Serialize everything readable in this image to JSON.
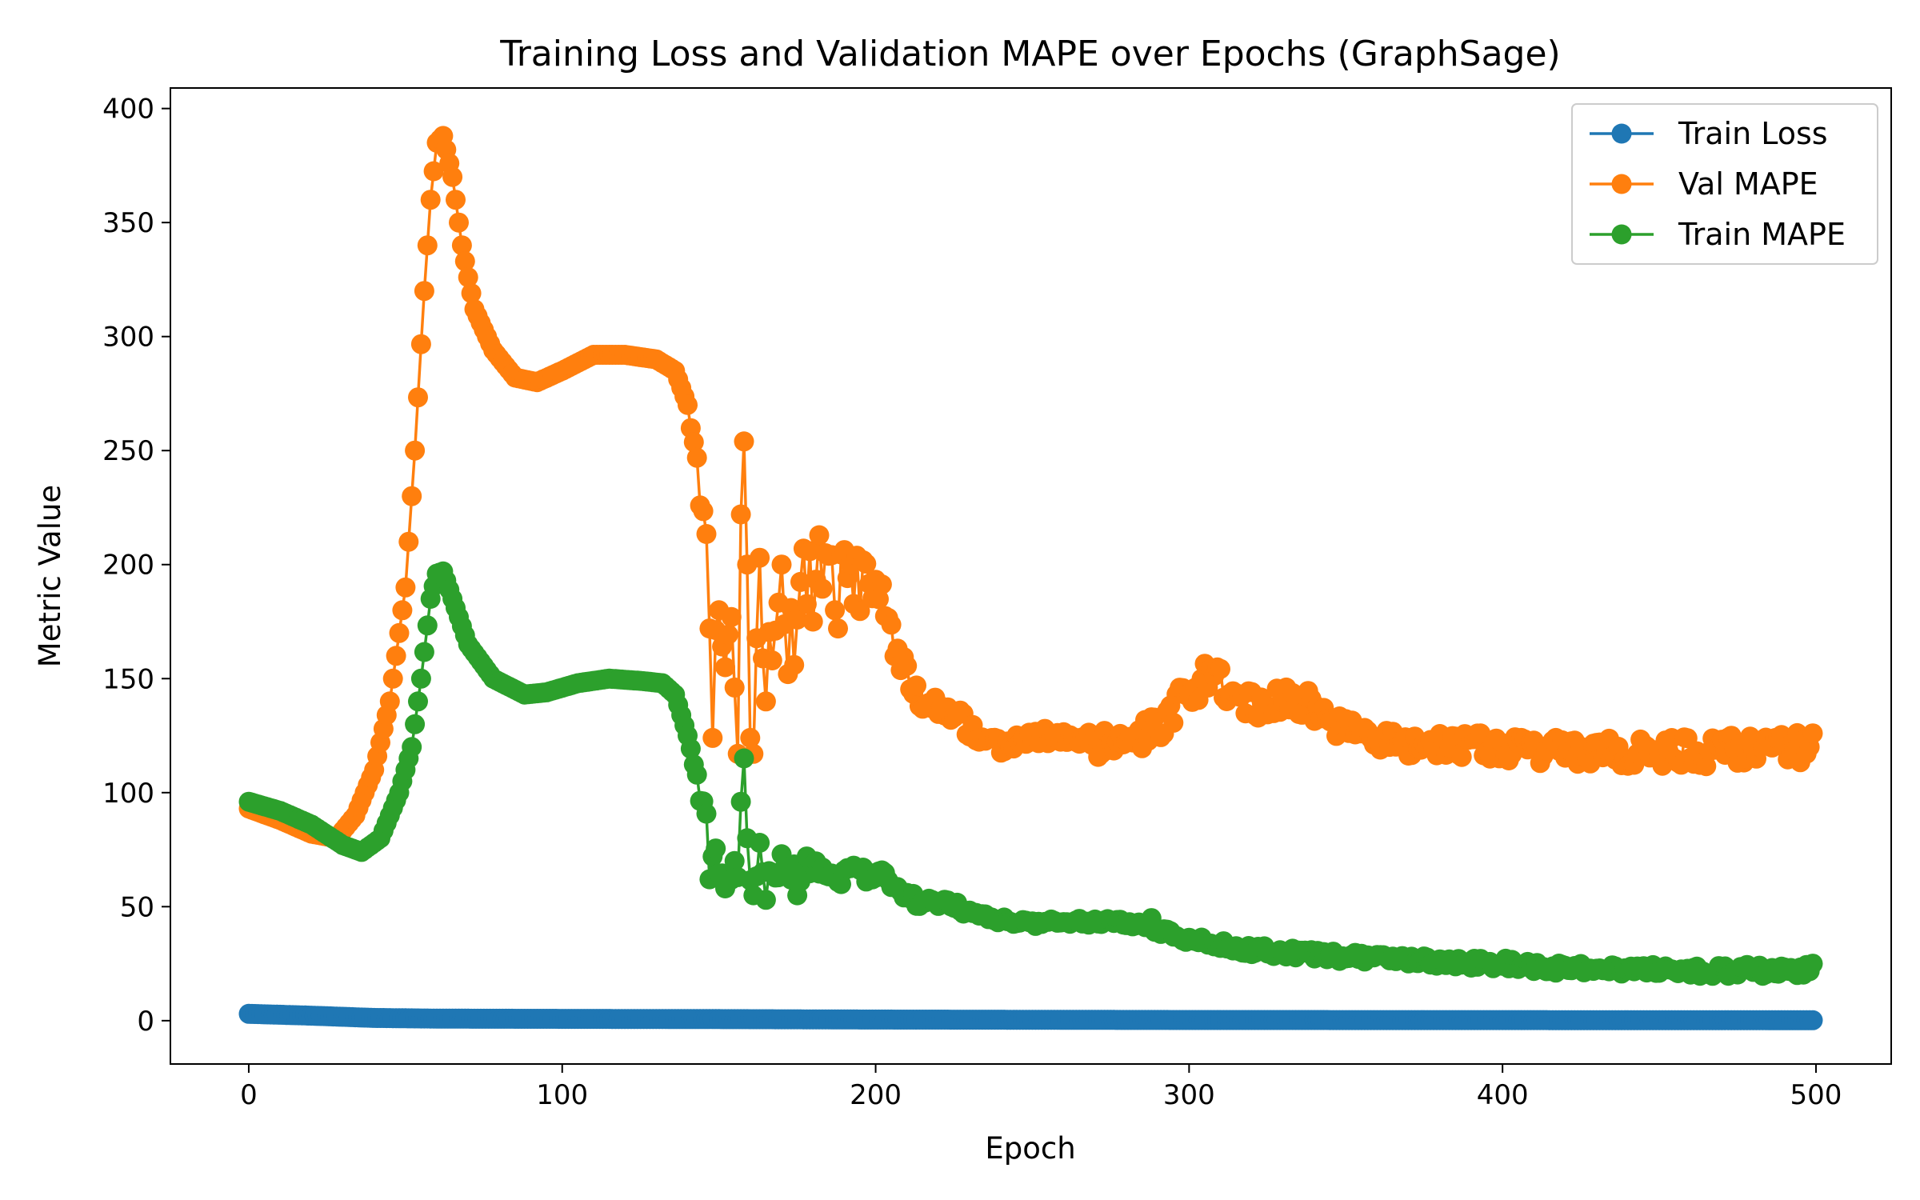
{
  "chart_data": {
    "type": "line",
    "title": "Training Loss and Validation MAPE over Epochs (GraphSage)",
    "xlabel": "Epoch",
    "ylabel": "Metric Value",
    "xlim": [
      -25,
      524
    ],
    "ylim": [
      -19,
      409
    ],
    "xticks": [
      0,
      100,
      200,
      300,
      400,
      500
    ],
    "yticks": [
      0,
      50,
      100,
      150,
      200,
      250,
      300,
      350,
      400
    ],
    "grid": false,
    "legend_position": "top-right",
    "epochs": 500,
    "series": [
      {
        "name": "Train Loss",
        "color": "#1f77b4",
        "anchors": [
          [
            0,
            3
          ],
          [
            5,
            2.8
          ],
          [
            20,
            2.2
          ],
          [
            40,
            1.2
          ],
          [
            60,
            0.9
          ],
          [
            100,
            0.8
          ],
          [
            150,
            0.7
          ],
          [
            200,
            0.5
          ],
          [
            300,
            0.3
          ],
          [
            400,
            0.25
          ],
          [
            499,
            0.2
          ]
        ]
      },
      {
        "name": "Val MAPE",
        "color": "#ff7f0e",
        "anchors": [
          [
            0,
            93
          ],
          [
            10,
            88
          ],
          [
            20,
            82
          ],
          [
            28,
            80
          ],
          [
            34,
            90
          ],
          [
            40,
            110
          ],
          [
            45,
            140
          ],
          [
            50,
            190
          ],
          [
            53,
            250
          ],
          [
            56,
            320
          ],
          [
            58,
            360
          ],
          [
            60,
            385
          ],
          [
            62,
            388
          ],
          [
            65,
            370
          ],
          [
            68,
            340
          ],
          [
            72,
            312
          ],
          [
            78,
            294
          ],
          [
            85,
            282
          ],
          [
            92,
            280
          ],
          [
            100,
            285
          ],
          [
            110,
            292
          ],
          [
            120,
            292
          ],
          [
            130,
            290
          ],
          [
            136,
            285
          ],
          [
            140,
            270
          ],
          [
            143,
            240
          ],
          [
            146,
            200
          ],
          [
            150,
            165
          ],
          [
            155,
            155
          ],
          [
            160,
            150
          ],
          [
            165,
            175
          ],
          [
            170,
            180
          ],
          [
            175,
            185
          ],
          [
            180,
            195
          ],
          [
            190,
            192
          ],
          [
            200,
            183
          ],
          [
            205,
            172
          ],
          [
            210,
            152
          ],
          [
            215,
            140
          ],
          [
            225,
            136
          ],
          [
            230,
            128
          ],
          [
            240,
            121
          ],
          [
            250,
            124
          ],
          [
            260,
            125
          ],
          [
            270,
            121
          ],
          [
            280,
            121
          ],
          [
            290,
            128
          ],
          [
            300,
            144
          ],
          [
            305,
            150
          ],
          [
            310,
            148
          ],
          [
            318,
            139
          ],
          [
            330,
            140
          ],
          [
            338,
            139
          ],
          [
            345,
            130
          ],
          [
            355,
            124
          ],
          [
            370,
            122
          ],
          [
            385,
            121
          ],
          [
            400,
            119
          ],
          [
            420,
            118
          ],
          [
            440,
            117
          ],
          [
            460,
            118
          ],
          [
            480,
            119
          ],
          [
            499,
            120
          ]
        ],
        "noise": [
          [
            0,
            0
          ],
          [
            140,
            0
          ],
          [
            146,
            14
          ],
          [
            190,
            20
          ],
          [
            215,
            5
          ],
          [
            250,
            3
          ],
          [
            285,
            8
          ],
          [
            340,
            6
          ],
          [
            380,
            6
          ],
          [
            499,
            7
          ]
        ],
        "spikes": [
          [
            147,
            172
          ],
          [
            148,
            124
          ],
          [
            150,
            180
          ],
          [
            152,
            155
          ],
          [
            154,
            177
          ],
          [
            156,
            117
          ],
          [
            157,
            222
          ],
          [
            158,
            254
          ],
          [
            159,
            200
          ],
          [
            160,
            124
          ],
          [
            161,
            117
          ],
          [
            163,
            203
          ],
          [
            165,
            140
          ],
          [
            167,
            158
          ],
          [
            170,
            200
          ],
          [
            172,
            152
          ],
          [
            174,
            156
          ],
          [
            177,
            207
          ],
          [
            180,
            175
          ],
          [
            184,
            205
          ],
          [
            188,
            172
          ],
          [
            192,
            200
          ],
          [
            499,
            126
          ]
        ]
      },
      {
        "name": "Train MAPE",
        "color": "#2ca02c",
        "anchors": [
          [
            0,
            96
          ],
          [
            10,
            92
          ],
          [
            20,
            86
          ],
          [
            30,
            77
          ],
          [
            36,
            74
          ],
          [
            42,
            80
          ],
          [
            48,
            100
          ],
          [
            52,
            120
          ],
          [
            55,
            150
          ],
          [
            58,
            185
          ],
          [
            60,
            196
          ],
          [
            62,
            197
          ],
          [
            65,
            185
          ],
          [
            70,
            165
          ],
          [
            78,
            150
          ],
          [
            88,
            143
          ],
          [
            95,
            144
          ],
          [
            105,
            148
          ],
          [
            115,
            150
          ],
          [
            125,
            149
          ],
          [
            132,
            148
          ],
          [
            136,
            143
          ],
          [
            140,
            125
          ],
          [
            143,
            105
          ],
          [
            146,
            85
          ],
          [
            150,
            68
          ],
          [
            155,
            63
          ],
          [
            160,
            62
          ],
          [
            170,
            64
          ],
          [
            180,
            66
          ],
          [
            190,
            64
          ],
          [
            200,
            63
          ],
          [
            205,
            62
          ],
          [
            210,
            55
          ],
          [
            215,
            52
          ],
          [
            225,
            51
          ],
          [
            230,
            47
          ],
          [
            245,
            43
          ],
          [
            260,
            43
          ],
          [
            275,
            44
          ],
          [
            285,
            42
          ],
          [
            290,
            40
          ],
          [
            300,
            36
          ],
          [
            320,
            31
          ],
          [
            340,
            29
          ],
          [
            360,
            27
          ],
          [
            380,
            26
          ],
          [
            400,
            25
          ],
          [
            420,
            23
          ],
          [
            440,
            23
          ],
          [
            460,
            22
          ],
          [
            480,
            22
          ],
          [
            499,
            22
          ]
        ],
        "noise": [
          [
            0,
            0
          ],
          [
            140,
            0
          ],
          [
            146,
            6
          ],
          [
            200,
            4
          ],
          [
            230,
            1.5
          ],
          [
            280,
            1.5
          ],
          [
            300,
            2
          ],
          [
            499,
            2.5
          ]
        ],
        "spikes": [
          [
            147,
            62
          ],
          [
            148,
            72
          ],
          [
            152,
            58
          ],
          [
            155,
            70
          ],
          [
            157,
            96
          ],
          [
            158,
            115
          ],
          [
            159,
            80
          ],
          [
            161,
            55
          ],
          [
            163,
            78
          ],
          [
            165,
            53
          ],
          [
            170,
            73
          ],
          [
            175,
            55
          ],
          [
            178,
            72
          ],
          [
            288,
            45
          ],
          [
            499,
            25
          ]
        ]
      }
    ]
  }
}
